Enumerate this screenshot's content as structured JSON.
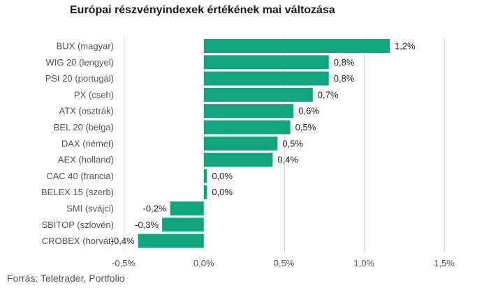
{
  "title": "Európai részvényindexek értékének mai változása",
  "source": "Forrás: Teletrader, Portfolio",
  "colors": {
    "bar": "#12a57d",
    "grid": "#d9d9d9",
    "text": "#555555"
  },
  "chart_data": {
    "type": "bar",
    "orientation": "horizontal",
    "title": "Európai részvényindexek értékének mai változása",
    "xlabel": "",
    "ylabel": "",
    "xlim": [
      -0.5,
      1.5
    ],
    "grid": true,
    "categories": [
      "BUX (magyar)",
      "WIG 20 (lengyel)",
      "PSI 20 (portugál)",
      "PX (cseh)",
      "ATX (osztrák)",
      "BEL 20 (belga)",
      "DAX (német)",
      "AEX (holland)",
      "CAC 40 (francia)",
      "BELEX 15 (szerb)",
      "SMI (svájci)",
      "SBITOP (szlovén)",
      "CROBEX (horvát)"
    ],
    "values": [
      1.16,
      0.78,
      0.78,
      0.68,
      0.56,
      0.54,
      0.46,
      0.43,
      0.02,
      0.02,
      -0.21,
      -0.26,
      -0.41
    ],
    "value_labels": [
      "1,2%",
      "0,8%",
      "0,8%",
      "0,7%",
      "0,6%",
      "0,5%",
      "0,5%",
      "0,4%",
      "0,0%",
      "0,0%",
      "-0,2%",
      "-0,3%",
      "-0,4%"
    ],
    "ticks": [
      -0.5,
      0,
      0.5,
      1.0,
      1.5
    ],
    "tick_labels": [
      "-0,5%",
      "0,0%",
      "0,5%",
      "1,0%",
      "1,5%"
    ]
  }
}
